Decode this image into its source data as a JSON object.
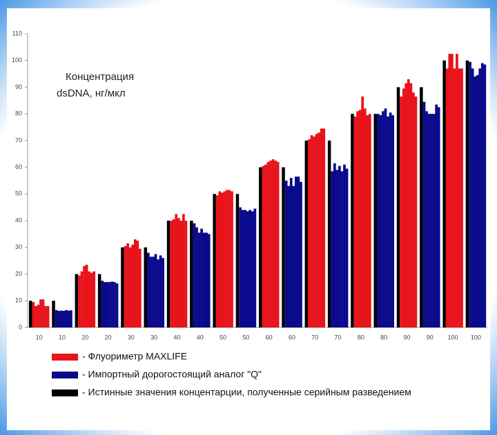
{
  "chart_data": {
    "type": "bar",
    "annotation": [
      "Концентрация",
      "dsDNA, нг/мкл"
    ],
    "categories": [
      "10",
      "10",
      "20",
      "20",
      "30",
      "30",
      "40",
      "40",
      "50",
      "50",
      "60",
      "60",
      "70",
      "70",
      "80",
      "80",
      "90",
      "90",
      "100",
      "100"
    ],
    "series": [
      {
        "name": "- Флуориметр MAXLIFE",
        "color": "#e8141c",
        "values": [
          [
            9.5,
            8,
            8.5,
            10.5,
            10.5,
            8,
            8
          ],
          null,
          [
            19.5,
            21,
            23,
            23.5,
            21,
            20.5,
            21
          ],
          null,
          [
            30.5,
            31.5,
            30,
            31,
            33,
            32.5,
            29.5
          ],
          null,
          [
            40,
            40.5,
            42.5,
            41,
            40,
            42.5,
            40
          ],
          null,
          [
            49.5,
            51,
            50.5,
            51,
            51.5,
            51.5,
            51
          ],
          null,
          [
            60.5,
            61,
            62,
            62.5,
            63,
            62.5,
            62
          ],
          null,
          [
            70.5,
            72,
            71.5,
            72.5,
            73,
            74.5,
            74.5
          ],
          null,
          [
            79,
            81,
            81.5,
            86.5,
            82,
            79.5,
            80
          ],
          null,
          [
            86.5,
            89.5,
            91.5,
            93,
            91.5,
            88,
            86.5
          ],
          null,
          [
            97,
            102.5,
            102.5,
            97,
            102.5,
            97,
            97
          ],
          null
        ]
      },
      {
        "name": "- Импортный дорогостоящий аналог \"Q\"",
        "color": "#0a0a8c",
        "values": [
          null,
          [
            6.5,
            6.2,
            6.3,
            6.2,
            6.5,
            6.3,
            6.4
          ],
          null,
          [
            17.5,
            17,
            17,
            17,
            17.2,
            17,
            16.5
          ],
          null,
          [
            28,
            26.5,
            26.5,
            27.5,
            25.5,
            27,
            26
          ],
          null,
          [
            39,
            37.5,
            35.5,
            37,
            35.5,
            35.5,
            35
          ],
          null,
          [
            45,
            44,
            44,
            43.5,
            44,
            43.5,
            44.5
          ],
          null,
          [
            55,
            53,
            56,
            53,
            56.5,
            56.5,
            54.5
          ],
          null,
          [
            58.5,
            61.5,
            59,
            60.5,
            58.5,
            61,
            59.5
          ],
          null,
          [
            80,
            79.5,
            81,
            82,
            79,
            80.5,
            79.5
          ],
          null,
          [
            84.5,
            81,
            80,
            80,
            80,
            83.5,
            82.5
          ],
          null,
          [
            99.5,
            97,
            94,
            94.5,
            97,
            99,
            98.5
          ]
        ]
      },
      {
        "name": "- Истинные значения концентарции, полученные серийным разведением",
        "color": "#000000",
        "values": [
          10,
          10,
          20,
          20,
          30,
          30,
          40,
          40,
          50,
          50,
          60,
          60,
          70,
          70,
          80,
          80,
          90,
          90,
          100,
          100
        ]
      }
    ],
    "ylim": [
      0,
      110
    ],
    "yticks": [
      0,
      10,
      20,
      30,
      40,
      50,
      60,
      70,
      80,
      90,
      100,
      110
    ],
    "grid": false
  }
}
